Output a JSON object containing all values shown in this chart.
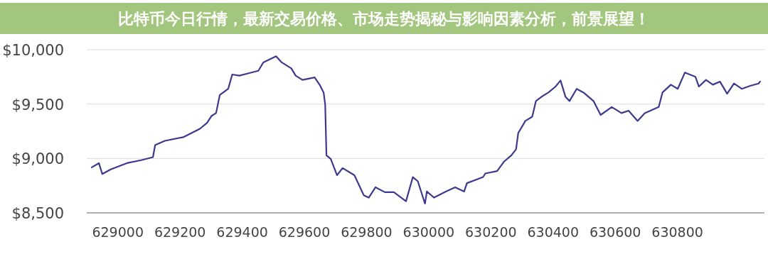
{
  "chart_data": {
    "type": "line",
    "title": "比特币今日行情，最新交易价格、市场走势揭秘与影响因素分析，前景展望！",
    "x": [
      628916,
      628939,
      628950,
      628977,
      629029,
      629075,
      629113,
      629120,
      629151,
      629210,
      629264,
      629287,
      629301,
      629316,
      629328,
      629355,
      629368,
      629391,
      629414,
      629452,
      629468,
      629509,
      629527,
      629558,
      629572,
      629594,
      629633,
      629649,
      629662,
      629667,
      629671,
      629685,
      629705,
      629723,
      629761,
      629791,
      629807,
      629829,
      629859,
      629888,
      629927,
      629949,
      629965,
      629988,
      629994,
      630017,
      630055,
      630085,
      630114,
      630123,
      630175,
      630182,
      630220,
      630243,
      630266,
      630281,
      630288,
      630311,
      630333,
      630345,
      630363,
      630385,
      630408,
      630424,
      630440,
      630453,
      630476,
      630498,
      630530,
      630553,
      630589,
      630620,
      630643,
      630672,
      630695,
      630740,
      630752,
      630779,
      630801,
      630824,
      630858,
      630869,
      630892,
      630914,
      630937,
      630960,
      630982,
      631007,
      631034,
      631061,
      631066
    ],
    "values": [
      8918,
      8957,
      8857,
      8900,
      8957,
      8984,
      9012,
      9123,
      9162,
      9195,
      9273,
      9328,
      9390,
      9417,
      9584,
      9640,
      9772,
      9761,
      9778,
      9806,
      9883,
      9939,
      9883,
      9828,
      9761,
      9722,
      9745,
      9678,
      9606,
      9495,
      9029,
      8995,
      8846,
      8912,
      8846,
      8662,
      8640,
      8735,
      8690,
      8690,
      8607,
      8829,
      8790,
      8585,
      8696,
      8640,
      8696,
      8735,
      8696,
      8773,
      8829,
      8862,
      8884,
      8973,
      9029,
      9084,
      9234,
      9345,
      9384,
      9528,
      9567,
      9606,
      9661,
      9717,
      9567,
      9528,
      9640,
      9606,
      9528,
      9400,
      9473,
      9417,
      9439,
      9345,
      9417,
      9473,
      9606,
      9678,
      9640,
      9789,
      9750,
      9661,
      9722,
      9678,
      9706,
      9595,
      9689,
      9640,
      9667,
      9689,
      9706
    ],
    "color": "#3b3a8f",
    "xlim": [
      628900,
      631080
    ],
    "ylim": [
      8500,
      10000
    ],
    "xticks": [
      629000,
      629200,
      629400,
      629600,
      629800,
      630000,
      630200,
      630400,
      630600,
      630800
    ],
    "yticks": [
      {
        "value": 8500,
        "label": "$8,500"
      },
      {
        "value": 9000,
        "label": "$9,000"
      },
      {
        "value": 9500,
        "label": "$9,500"
      },
      {
        "value": 10000,
        "label": "$10,000"
      }
    ],
    "grid": "y"
  }
}
